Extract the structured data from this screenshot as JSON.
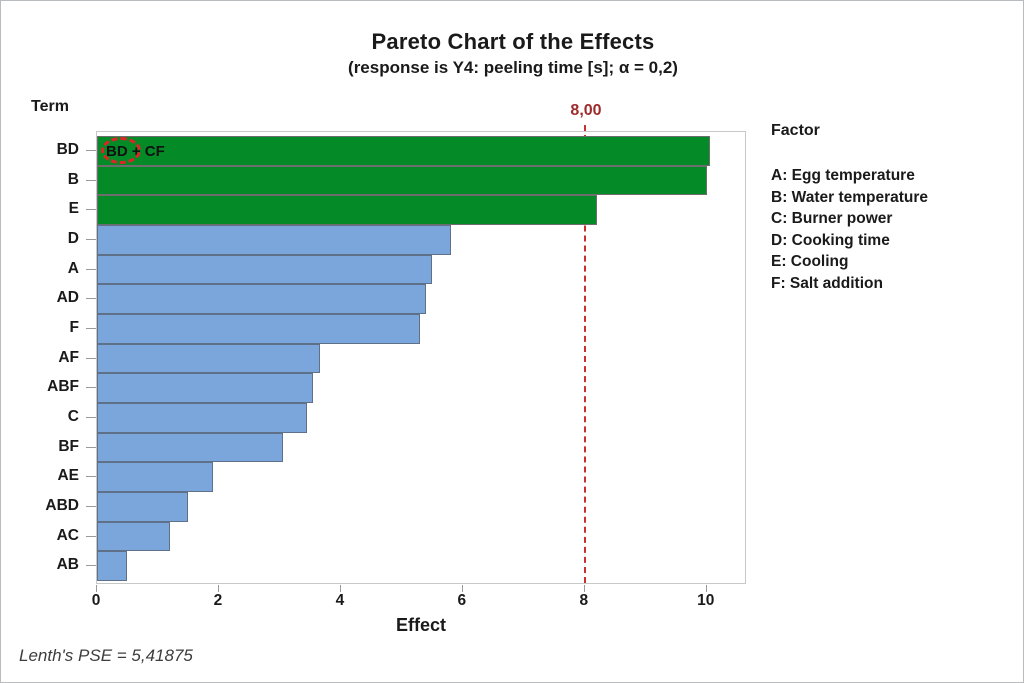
{
  "chart_data": {
    "type": "bar",
    "orientation": "horizontal",
    "title": "Pareto Chart of the Effects",
    "subtitle": "(response is Y4: peeling time [s]; α = 0,2)",
    "xlabel": "Effect",
    "ylabel": "Term",
    "xlim": [
      0,
      10.66
    ],
    "xticks": [
      0,
      2,
      4,
      6,
      8,
      10
    ],
    "grid": false,
    "categories": [
      "BD",
      "B",
      "E",
      "D",
      "A",
      "AD",
      "F",
      "AF",
      "ABF",
      "C",
      "BF",
      "AE",
      "ABD",
      "AC",
      "AB"
    ],
    "values": [
      10.05,
      10.0,
      8.2,
      5.8,
      5.5,
      5.4,
      5.3,
      3.65,
      3.55,
      3.45,
      3.05,
      1.9,
      1.5,
      1.2,
      0.5
    ],
    "significant_categories": [
      "BD",
      "B",
      "E"
    ],
    "reference_line": {
      "value": 8,
      "label": "8,00"
    },
    "annotation": "BD + CF",
    "colors": {
      "significant_fill": "#048b27",
      "normal_fill": "#7ba6db",
      "reference_red": "#c82f2f",
      "reference_label_red": "#9e2a2b"
    },
    "legend": {
      "title": "Factor",
      "items": [
        "A: Egg temperature",
        "B: Water temperature",
        "C: Burner power",
        "D: Cooking time",
        "E: Cooling",
        "F: Salt addition"
      ]
    },
    "footnote": "Lenth's PSE = 5,41875"
  }
}
